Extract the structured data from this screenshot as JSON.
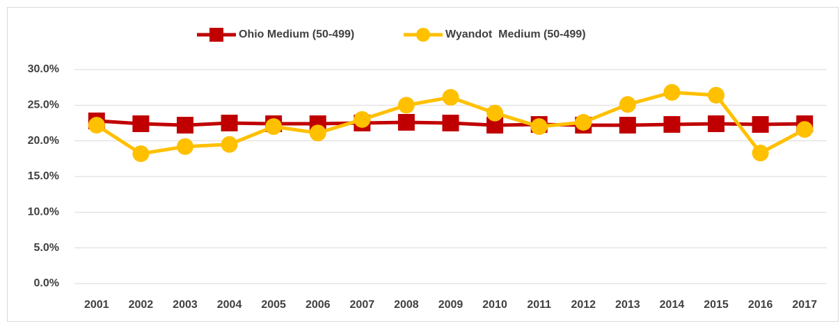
{
  "chart_data": {
    "type": "line",
    "categories": [
      "2001",
      "2002",
      "2003",
      "2004",
      "2005",
      "2006",
      "2007",
      "2008",
      "2009",
      "2010",
      "2011",
      "2012",
      "2013",
      "2014",
      "2015",
      "2016",
      "2017"
    ],
    "series": [
      {
        "name": "Ohio Medium (50-499)",
        "color": "#c00000",
        "marker": "square",
        "values": [
          22.8,
          22.4,
          22.2,
          22.5,
          22.4,
          22.4,
          22.5,
          22.6,
          22.5,
          22.2,
          22.3,
          22.2,
          22.2,
          22.3,
          22.4,
          22.3,
          22.4
        ]
      },
      {
        "name": "Wyandot  Medium (50-499)",
        "color": "#ffc000",
        "marker": "circle",
        "values": [
          22.2,
          18.2,
          19.2,
          19.5,
          22.0,
          21.1,
          23.0,
          25.0,
          26.1,
          23.9,
          22.0,
          22.6,
          25.1,
          26.8,
          26.4,
          18.3,
          21.6
        ]
      }
    ],
    "ylim": [
      0,
      30
    ],
    "yticks": [
      {
        "value": 0,
        "label": "0.0%"
      },
      {
        "value": 5,
        "label": "5.0%"
      },
      {
        "value": 10,
        "label": "10.0%"
      },
      {
        "value": 15,
        "label": "15.0%"
      },
      {
        "value": 20,
        "label": "20.0%"
      },
      {
        "value": 25,
        "label": "25.0%"
      },
      {
        "value": 30,
        "label": "30.0%"
      }
    ],
    "grid": true,
    "legend": "top"
  }
}
